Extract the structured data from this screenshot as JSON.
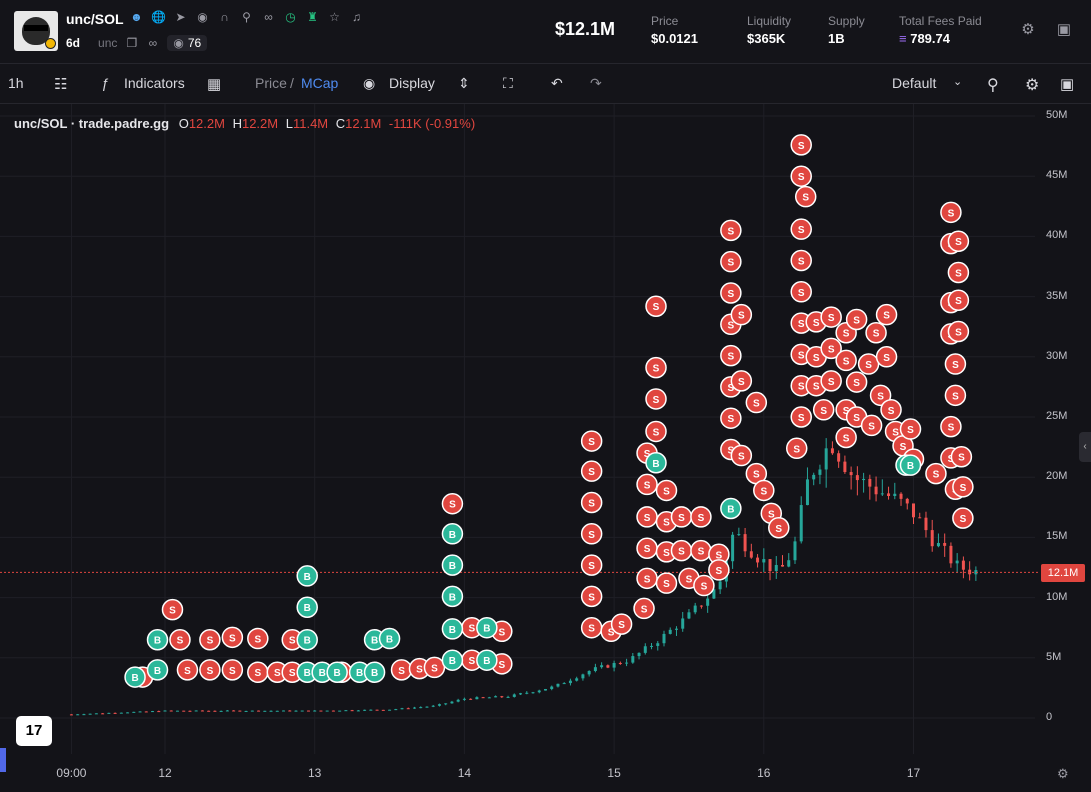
{
  "header": {
    "pair": "unc/SOL",
    "age": "6d",
    "symbol": "unc",
    "views": "76",
    "market_cap": "$12.1M",
    "stats": [
      {
        "label": "Price",
        "value": "$0.0121"
      },
      {
        "label": "Liquidity",
        "value": "$365K"
      },
      {
        "label": "Supply",
        "value": "1B"
      },
      {
        "label": "Total Fees Paid",
        "value": "789.74"
      }
    ],
    "icons": [
      "user-icon",
      "globe-icon",
      "telegram-icon",
      "discord-icon",
      "gate-icon",
      "search-icon",
      "link-icon",
      "clock-icon",
      "ghost-icon",
      "star-icon",
      "bell-icon"
    ]
  },
  "toolbar": {
    "interval": "1h",
    "indicators": "Indicators",
    "price": "Price",
    "slash": "/",
    "mcap": "MCap",
    "display": "Display",
    "layout": "Default"
  },
  "legend": {
    "title": "unc/SOL · trade.padre.gg",
    "o_label": "O",
    "o": "12.2M",
    "h_label": "H",
    "h": "12.2M",
    "l_label": "L",
    "l": "11.4M",
    "c_label": "C",
    "c": "12.1M",
    "change": "-111K (-0.91%)"
  },
  "current_price_tag": "12.1M",
  "tv_logo": "17",
  "chart_data": {
    "type": "candlestick",
    "y_ticks": [
      "50M",
      "45M",
      "40M",
      "35M",
      "30M",
      "25M",
      "20M",
      "15M",
      "10M",
      "5M",
      "0"
    ],
    "y_tick_values": [
      50,
      45,
      40,
      35,
      30,
      25,
      20,
      15,
      10,
      5,
      0
    ],
    "x_ticks": [
      "09:00",
      "12",
      "13",
      "14",
      "15",
      "16",
      "17"
    ],
    "ylim": [
      0,
      50
    ],
    "current_value": 12.1,
    "colors": {
      "up": "#26a69a",
      "down": "#ef5350",
      "buy": "#2bb89a",
      "sell": "#e0463f"
    },
    "trade_markers": {
      "buy": [
        {
          "day": 11.8,
          "mcap": 3.4
        },
        {
          "day": 11.95,
          "mcap": 4.0
        },
        {
          "day": 11.95,
          "mcap": 6.5
        },
        {
          "day": 12.95,
          "mcap": 11.8
        },
        {
          "day": 12.95,
          "mcap": 9.2
        },
        {
          "day": 12.95,
          "mcap": 6.5
        },
        {
          "day": 12.95,
          "mcap": 3.8
        },
        {
          "day": 13.05,
          "mcap": 3.8
        },
        {
          "day": 13.15,
          "mcap": 3.8
        },
        {
          "day": 13.3,
          "mcap": 3.8
        },
        {
          "day": 13.4,
          "mcap": 3.8
        },
        {
          "day": 13.4,
          "mcap": 6.5
        },
        {
          "day": 13.5,
          "mcap": 6.6
        },
        {
          "day": 13.92,
          "mcap": 15.3
        },
        {
          "day": 13.92,
          "mcap": 12.7
        },
        {
          "day": 13.92,
          "mcap": 10.1
        },
        {
          "day": 13.92,
          "mcap": 7.4
        },
        {
          "day": 13.92,
          "mcap": 4.8
        },
        {
          "day": 14.15,
          "mcap": 7.5
        },
        {
          "day": 14.15,
          "mcap": 4.8
        },
        {
          "day": 15.28,
          "mcap": 21.2
        },
        {
          "day": 15.78,
          "mcap": 17.4
        },
        {
          "day": 16.95,
          "mcap": 21.0
        },
        {
          "day": 16.98,
          "mcap": 21.0
        }
      ],
      "sell": [
        {
          "day": 11.85,
          "mcap": 3.4
        },
        {
          "day": 12.05,
          "mcap": 9.0
        },
        {
          "day": 12.1,
          "mcap": 6.5
        },
        {
          "day": 12.15,
          "mcap": 4.0
        },
        {
          "day": 12.3,
          "mcap": 6.5
        },
        {
          "day": 12.3,
          "mcap": 4.0
        },
        {
          "day": 12.45,
          "mcap": 6.7
        },
        {
          "day": 12.45,
          "mcap": 4.0
        },
        {
          "day": 12.62,
          "mcap": 6.6
        },
        {
          "day": 12.62,
          "mcap": 3.8
        },
        {
          "day": 12.75,
          "mcap": 3.8
        },
        {
          "day": 12.85,
          "mcap": 6.5
        },
        {
          "day": 12.85,
          "mcap": 3.8
        },
        {
          "day": 13.18,
          "mcap": 3.8
        },
        {
          "day": 13.58,
          "mcap": 4.0
        },
        {
          "day": 13.7,
          "mcap": 4.1
        },
        {
          "day": 13.8,
          "mcap": 4.2
        },
        {
          "day": 13.92,
          "mcap": 17.8
        },
        {
          "day": 14.05,
          "mcap": 7.5
        },
        {
          "day": 14.05,
          "mcap": 4.8
        },
        {
          "day": 14.25,
          "mcap": 7.2
        },
        {
          "day": 14.25,
          "mcap": 4.5
        },
        {
          "day": 14.85,
          "mcap": 23.0
        },
        {
          "day": 14.85,
          "mcap": 20.5
        },
        {
          "day": 14.85,
          "mcap": 17.9
        },
        {
          "day": 14.85,
          "mcap": 15.3
        },
        {
          "day": 14.85,
          "mcap": 12.7
        },
        {
          "day": 14.85,
          "mcap": 10.1
        },
        {
          "day": 14.85,
          "mcap": 7.5
        },
        {
          "day": 14.98,
          "mcap": 7.2
        },
        {
          "day": 15.05,
          "mcap": 7.8
        },
        {
          "day": 15.2,
          "mcap": 9.1
        },
        {
          "day": 15.28,
          "mcap": 34.2
        },
        {
          "day": 15.28,
          "mcap": 29.1
        },
        {
          "day": 15.28,
          "mcap": 26.5
        },
        {
          "day": 15.28,
          "mcap": 23.8
        },
        {
          "day": 15.22,
          "mcap": 22.0
        },
        {
          "day": 15.22,
          "mcap": 19.4
        },
        {
          "day": 15.22,
          "mcap": 16.7
        },
        {
          "day": 15.22,
          "mcap": 14.1
        },
        {
          "day": 15.22,
          "mcap": 11.6
        },
        {
          "day": 15.35,
          "mcap": 18.9
        },
        {
          "day": 15.35,
          "mcap": 16.3
        },
        {
          "day": 15.35,
          "mcap": 13.8
        },
        {
          "day": 15.35,
          "mcap": 11.2
        },
        {
          "day": 15.45,
          "mcap": 16.7
        },
        {
          "day": 15.45,
          "mcap": 13.9
        },
        {
          "day": 15.5,
          "mcap": 11.6
        },
        {
          "day": 15.58,
          "mcap": 16.7
        },
        {
          "day": 15.58,
          "mcap": 13.9
        },
        {
          "day": 15.6,
          "mcap": 11.0
        },
        {
          "day": 15.7,
          "mcap": 13.6
        },
        {
          "day": 15.7,
          "mcap": 12.3
        },
        {
          "day": 15.78,
          "mcap": 40.5
        },
        {
          "day": 15.78,
          "mcap": 37.9
        },
        {
          "day": 15.78,
          "mcap": 35.3
        },
        {
          "day": 15.78,
          "mcap": 32.7
        },
        {
          "day": 15.78,
          "mcap": 30.1
        },
        {
          "day": 15.78,
          "mcap": 27.5
        },
        {
          "day": 15.78,
          "mcap": 24.9
        },
        {
          "day": 15.78,
          "mcap": 22.3
        },
        {
          "day": 15.85,
          "mcap": 33.5
        },
        {
          "day": 15.85,
          "mcap": 28.0
        },
        {
          "day": 15.85,
          "mcap": 21.8
        },
        {
          "day": 15.95,
          "mcap": 26.2
        },
        {
          "day": 15.95,
          "mcap": 20.3
        },
        {
          "day": 16.0,
          "mcap": 18.9
        },
        {
          "day": 16.05,
          "mcap": 17.0
        },
        {
          "day": 16.1,
          "mcap": 15.8
        },
        {
          "day": 16.25,
          "mcap": 47.6
        },
        {
          "day": 16.25,
          "mcap": 45.0
        },
        {
          "day": 16.28,
          "mcap": 43.3
        },
        {
          "day": 16.25,
          "mcap": 40.6
        },
        {
          "day": 16.25,
          "mcap": 38.0
        },
        {
          "day": 16.25,
          "mcap": 35.4
        },
        {
          "day": 16.25,
          "mcap": 32.8
        },
        {
          "day": 16.25,
          "mcap": 30.2
        },
        {
          "day": 16.25,
          "mcap": 27.6
        },
        {
          "day": 16.25,
          "mcap": 25.0
        },
        {
          "day": 16.22,
          "mcap": 22.4
        },
        {
          "day": 16.35,
          "mcap": 32.9
        },
        {
          "day": 16.35,
          "mcap": 30.0
        },
        {
          "day": 16.35,
          "mcap": 27.6
        },
        {
          "day": 16.4,
          "mcap": 25.6
        },
        {
          "day": 16.45,
          "mcap": 33.3
        },
        {
          "day": 16.45,
          "mcap": 30.7
        },
        {
          "day": 16.45,
          "mcap": 28.0
        },
        {
          "day": 16.55,
          "mcap": 32.0
        },
        {
          "day": 16.55,
          "mcap": 29.7
        },
        {
          "day": 16.55,
          "mcap": 25.6
        },
        {
          "day": 16.55,
          "mcap": 23.3
        },
        {
          "day": 16.62,
          "mcap": 33.1
        },
        {
          "day": 16.62,
          "mcap": 27.9
        },
        {
          "day": 16.62,
          "mcap": 25.0
        },
        {
          "day": 16.7,
          "mcap": 29.4
        },
        {
          "day": 16.72,
          "mcap": 24.3
        },
        {
          "day": 16.75,
          "mcap": 32.0
        },
        {
          "day": 16.78,
          "mcap": 26.8
        },
        {
          "day": 16.82,
          "mcap": 33.5
        },
        {
          "day": 16.82,
          "mcap": 30.0
        },
        {
          "day": 16.85,
          "mcap": 25.6
        },
        {
          "day": 16.88,
          "mcap": 23.8
        },
        {
          "day": 16.93,
          "mcap": 22.6
        },
        {
          "day": 16.98,
          "mcap": 24.0
        },
        {
          "day": 17.0,
          "mcap": 21.5
        },
        {
          "day": 17.15,
          "mcap": 20.3
        },
        {
          "day": 17.25,
          "mcap": 42.0
        },
        {
          "day": 17.25,
          "mcap": 39.4
        },
        {
          "day": 17.3,
          "mcap": 39.6
        },
        {
          "day": 17.3,
          "mcap": 37.0
        },
        {
          "day": 17.25,
          "mcap": 34.5
        },
        {
          "day": 17.3,
          "mcap": 34.7
        },
        {
          "day": 17.25,
          "mcap": 31.9
        },
        {
          "day": 17.3,
          "mcap": 32.1
        },
        {
          "day": 17.28,
          "mcap": 29.4
        },
        {
          "day": 17.28,
          "mcap": 26.8
        },
        {
          "day": 17.25,
          "mcap": 24.2
        },
        {
          "day": 17.25,
          "mcap": 21.6
        },
        {
          "day": 17.32,
          "mcap": 21.7
        },
        {
          "day": 17.28,
          "mcap": 19.0
        },
        {
          "day": 17.33,
          "mcap": 19.2
        },
        {
          "day": 17.33,
          "mcap": 16.6
        }
      ]
    }
  }
}
